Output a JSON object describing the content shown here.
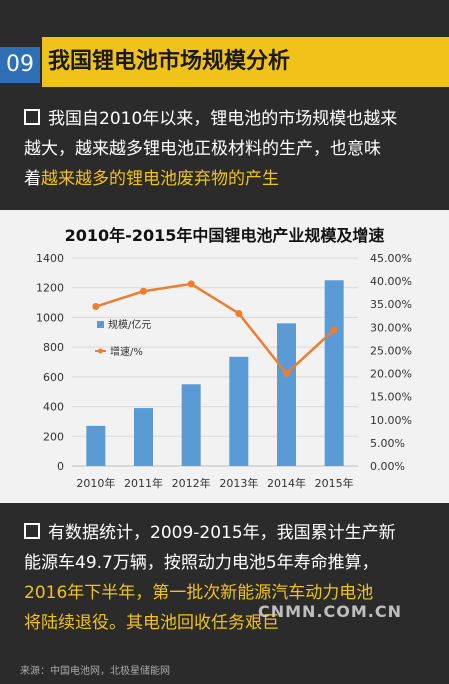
{
  "header": {
    "number": "09",
    "title": "我国锂电池市场规模分析"
  },
  "para1": {
    "lines": [
      "我国自2010年以来，锂电池的市场规模也越来",
      "越大，越来越多锂电池正极材料的生产，也意味"
    ],
    "line3_prefix": "着",
    "line3_highlight": "越来越多的锂电池废弃物的产生"
  },
  "chart_data": {
    "type": "bar",
    "title": "2010年-2015年中国锂电池产业规模及增速",
    "categories": [
      "2010年",
      "2011年",
      "2012年",
      "2013年",
      "2014年",
      "2015年"
    ],
    "series": [
      {
        "name": "规模/亿元",
        "type": "bar",
        "axis": "left",
        "values": [
          270,
          390,
          550,
          735,
          960,
          1250
        ],
        "color": "#5b9bd5"
      },
      {
        "name": "增速/%",
        "type": "line",
        "axis": "right",
        "values": [
          34.5,
          37.8,
          39.4,
          33.0,
          20.0,
          29.5
        ],
        "color": "#ed7d31"
      }
    ],
    "y_left": {
      "min": 0,
      "max": 1400,
      "ticks": [
        "0",
        "200",
        "400",
        "600",
        "800",
        "1000",
        "1200",
        "1400"
      ]
    },
    "y_right": {
      "min": 0,
      "max": 45,
      "ticks": [
        "0.00%",
        "5.00%",
        "10.00%",
        "15.00%",
        "20.00%",
        "25.00%",
        "30.00%",
        "35.00%",
        "40.00%",
        "45.00%"
      ]
    },
    "grid": true,
    "legend": "left"
  },
  "para2": {
    "line1": "有数据统计，2009-2015年，我国累计生产新",
    "line2": "能源车49.7万辆，按照动力电池5年寿命推算，",
    "line3": "2016年下半年，第一批次新能源汽车动力电池",
    "line4": "将陆续退役。其电池回收任务艰巨"
  },
  "source": "来源：中国电池网，北极星储能网",
  "watermark": "CNMN.COM.CN"
}
